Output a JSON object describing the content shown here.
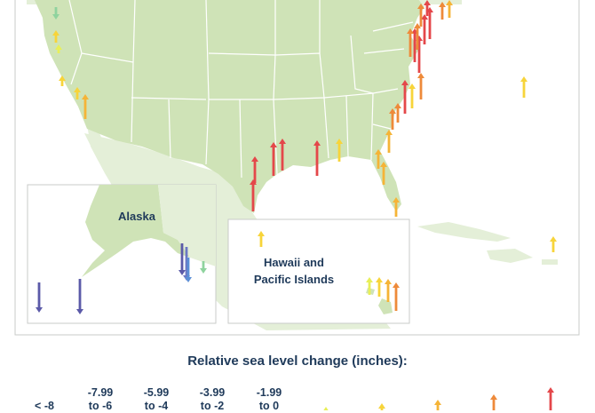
{
  "map": {
    "alaska_label": "Alaska",
    "hawaii_label_line1": "Hawaii and",
    "hawaii_label_line2": "Pacific Islands",
    "colors": {
      "land_us": "#cfe3b7",
      "land_other": "#e4efd8",
      "sea": "#ffffff",
      "border": "#ffffff",
      "frame": "#c9cbc8"
    }
  },
  "legend": {
    "title": "Relative sea level change (inches):",
    "bins": [
      {
        "line1": "< -8",
        "line2": "",
        "color": "#5b5aa8",
        "direction": "down"
      },
      {
        "line1": "-7.99",
        "line2": "to -6",
        "color": "#6c78c4",
        "direction": "down"
      },
      {
        "line1": "-5.99",
        "line2": "to -4",
        "color": "#5b8fd6",
        "direction": "down"
      },
      {
        "line1": "-3.99",
        "line2": "to -2",
        "color": "#6ab8d8",
        "direction": "down"
      },
      {
        "line1": "-1.99",
        "line2": "to 0",
        "color": "#8fd39e",
        "direction": "down"
      },
      {
        "line1": "",
        "line2": "",
        "color": "#e8ef58",
        "direction": "up"
      },
      {
        "line1": "",
        "line2": "",
        "color": "#f7d43a",
        "direction": "up"
      },
      {
        "line1": "",
        "line2": "",
        "color": "#f5b437",
        "direction": "up"
      },
      {
        "line1": "",
        "line2": "",
        "color": "#ee8a3a",
        "direction": "up"
      },
      {
        "line1": "",
        "line2": "",
        "color": "#e4474a",
        "direction": "up"
      }
    ]
  }
}
